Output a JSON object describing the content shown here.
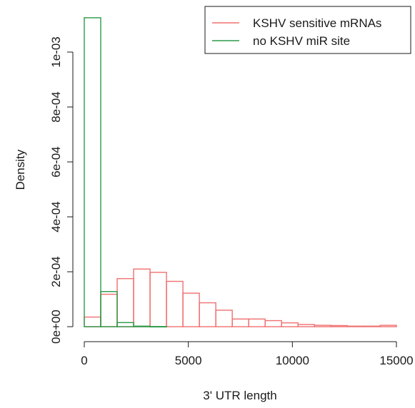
{
  "chart_data": {
    "type": "histogram",
    "xlabel": "3' UTR length",
    "ylabel": "Density",
    "xlim": [
      0,
      15000
    ],
    "ylim": [
      0,
      0.00113
    ],
    "x_ticks": [
      {
        "value": 0,
        "label": "0"
      },
      {
        "value": 5000,
        "label": "5000"
      },
      {
        "value": 10000,
        "label": "10000"
      },
      {
        "value": 15000,
        "label": "15000"
      }
    ],
    "y_ticks": [
      {
        "value": 0,
        "label": "0e+00"
      },
      {
        "value": 0.0002,
        "label": "2e-04"
      },
      {
        "value": 0.0004,
        "label": "4e-04"
      },
      {
        "value": 0.0006,
        "label": "6e-04"
      },
      {
        "value": 0.0008,
        "label": "8e-04"
      },
      {
        "value": 0.001,
        "label": "1e-03"
      }
    ],
    "grid": false,
    "legend_position": "top-right",
    "series": [
      {
        "name": "KSHV sensitive mRNAs",
        "color": "#f07070",
        "bins": [
          {
            "x0": 0,
            "x1": 790,
            "density": 3.5e-05
          },
          {
            "x0": 790,
            "x1": 1580,
            "density": 0.000118
          },
          {
            "x0": 1580,
            "x1": 2370,
            "density": 0.000175
          },
          {
            "x0": 2370,
            "x1": 3160,
            "density": 0.00021
          },
          {
            "x0": 3160,
            "x1": 3950,
            "density": 0.000198
          },
          {
            "x0": 3950,
            "x1": 4740,
            "density": 0.000165
          },
          {
            "x0": 4740,
            "x1": 5530,
            "density": 0.000122
          },
          {
            "x0": 5530,
            "x1": 6320,
            "density": 8.7e-05
          },
          {
            "x0": 6320,
            "x1": 7110,
            "density": 6e-05
          },
          {
            "x0": 7110,
            "x1": 7900,
            "density": 2.8e-05
          },
          {
            "x0": 7900,
            "x1": 8690,
            "density": 2.8e-05
          },
          {
            "x0": 8690,
            "x1": 9480,
            "density": 2.2e-05
          },
          {
            "x0": 9480,
            "x1": 10270,
            "density": 1.4e-05
          },
          {
            "x0": 10270,
            "x1": 11060,
            "density": 8e-06
          },
          {
            "x0": 11060,
            "x1": 11850,
            "density": 5e-06
          },
          {
            "x0": 11850,
            "x1": 12640,
            "density": 4e-06
          },
          {
            "x0": 12640,
            "x1": 13430,
            "density": 2e-06
          },
          {
            "x0": 13430,
            "x1": 14220,
            "density": 2e-06
          },
          {
            "x0": 14220,
            "x1": 15000,
            "density": 5e-06
          }
        ]
      },
      {
        "name": "no KSHV miR site",
        "color": "#2a9a48",
        "bins": [
          {
            "x0": 0,
            "x1": 790,
            "density": 0.001125
          },
          {
            "x0": 790,
            "x1": 1580,
            "density": 0.000128
          },
          {
            "x0": 1580,
            "x1": 2370,
            "density": 1.5e-05
          },
          {
            "x0": 2370,
            "x1": 3160,
            "density": 2e-06
          },
          {
            "x0": 3160,
            "x1": 3950,
            "density": 5e-07
          }
        ]
      }
    ]
  }
}
